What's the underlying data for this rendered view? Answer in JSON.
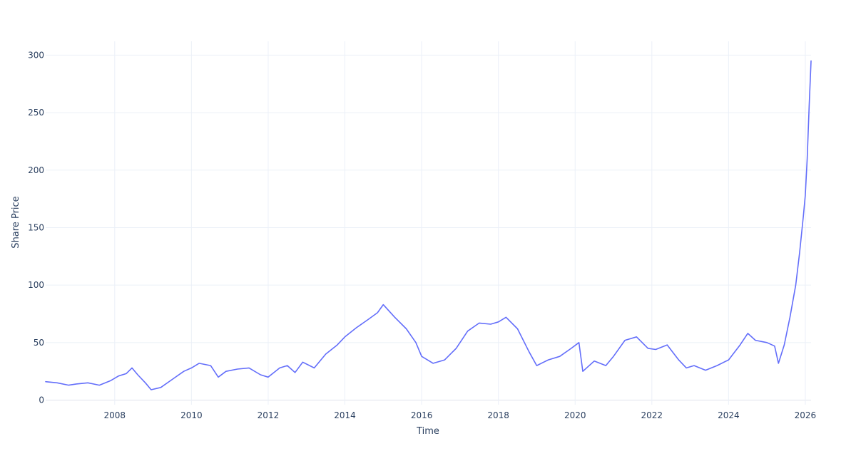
{
  "chart_data": {
    "type": "line",
    "title": "",
    "xlabel": "Time",
    "ylabel": "Share Price",
    "xlim": [
      2006.2,
      2026.15
    ],
    "ylim": [
      -4,
      312
    ],
    "x_ticks": [
      2008,
      2010,
      2012,
      2014,
      2016,
      2018,
      2020,
      2022,
      2024,
      2026
    ],
    "y_ticks": [
      0,
      50,
      100,
      150,
      200,
      250,
      300
    ],
    "grid": true,
    "legend": "none",
    "line_color": "#636efa",
    "series": [
      {
        "x": [
          2006.2,
          2006.5,
          2006.8,
          2007.0,
          2007.3,
          2007.6,
          2007.9,
          2008.1,
          2008.3,
          2008.45,
          2008.6,
          2008.8,
          2008.95,
          2009.2,
          2009.5,
          2009.8,
          2010.0,
          2010.2,
          2010.5,
          2010.7,
          2010.9,
          2011.2,
          2011.5,
          2011.8,
          2012.0,
          2012.3,
          2012.5,
          2012.7,
          2012.9,
          2013.2,
          2013.5,
          2013.8,
          2014.0,
          2014.3,
          2014.6,
          2014.85,
          2015.0,
          2015.3,
          2015.6,
          2015.85,
          2016.0,
          2016.3,
          2016.6,
          2016.9,
          2017.2,
          2017.5,
          2017.8,
          2018.0,
          2018.2,
          2018.5,
          2018.8,
          2019.0,
          2019.3,
          2019.6,
          2019.9,
          2020.1,
          2020.2,
          2020.5,
          2020.8,
          2021.0,
          2021.3,
          2021.6,
          2021.9,
          2022.1,
          2022.4,
          2022.7,
          2022.9,
          2023.1,
          2023.4,
          2023.7,
          2024.0,
          2024.3,
          2024.5,
          2024.7,
          2025.0,
          2025.2,
          2025.3,
          2025.45,
          2025.6,
          2025.75,
          2025.85,
          2025.95,
          2026.0,
          2026.05,
          2026.1,
          2026.15
        ],
        "values": [
          16,
          15,
          13,
          14,
          15,
          13,
          17,
          21,
          23,
          28,
          22,
          15,
          9,
          11,
          18,
          25,
          28,
          32,
          30,
          20,
          25,
          27,
          28,
          22,
          20,
          28,
          30,
          24,
          33,
          28,
          40,
          48,
          55,
          63,
          70,
          76,
          83,
          72,
          62,
          50,
          38,
          32,
          35,
          45,
          60,
          67,
          66,
          68,
          72,
          62,
          42,
          30,
          35,
          38,
          45,
          50,
          25,
          34,
          30,
          38,
          52,
          55,
          45,
          44,
          48,
          35,
          28,
          30,
          26,
          30,
          35,
          48,
          58,
          52,
          50,
          47,
          32,
          48,
          72,
          100,
          128,
          160,
          178,
          210,
          255,
          295
        ]
      }
    ]
  }
}
